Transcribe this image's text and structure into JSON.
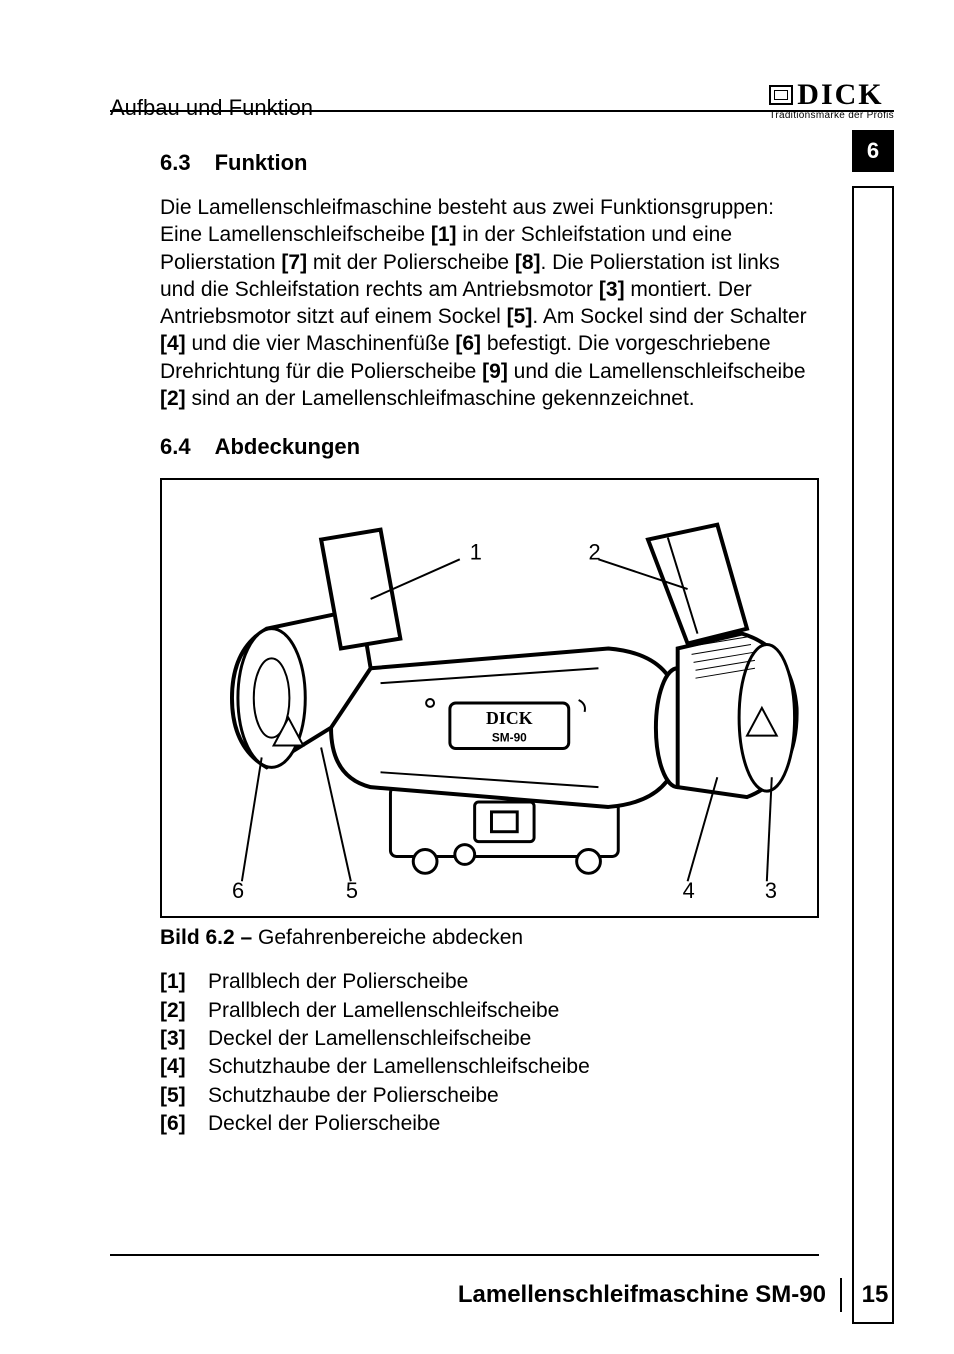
{
  "header": {
    "section_title": "Aufbau und Funktion",
    "brand_name": "DICK",
    "brand_tagline": "Traditionsmarke der Profis",
    "section_number": "6"
  },
  "section_63": {
    "num": "6.3",
    "title": "Funktion",
    "paragraph_parts": [
      "Die Lamellenschleifmaschine besteht aus zwei Funktionsgruppen: Eine Lamellenschleifscheibe ",
      "[1]",
      " in der Schleifstation und eine Polierstation ",
      "[7]",
      " mit der Polierscheibe ",
      "[8]",
      ". Die Polierstation ist links und die Schleifstation rechts am Antriebsmotor ",
      "[3]",
      " montiert. Der Antriebsmotor sitzt auf einem Sockel ",
      "[5]",
      ". Am Sockel sind der Schalter ",
      "[4]",
      " und die vier Maschinenfüße ",
      "[6]",
      " befestigt. Die vorgeschriebene Drehrichtung für die Polierscheibe ",
      "[9]",
      " und die Lamellenschleifscheibe ",
      "[2]",
      " sind an der Lamellenschleifmaschine gekennzeichnet."
    ]
  },
  "section_64": {
    "num": "6.4",
    "title": "Abdeckungen"
  },
  "figure": {
    "caption_prefix": "Bild 6.2 – ",
    "caption_text": "Gefahrenbereiche abdecken",
    "callouts": [
      "1",
      "2",
      "6",
      "5",
      "4",
      "3"
    ],
    "machine_label_top": "DICK",
    "machine_label_bottom": "SM-90"
  },
  "legend": [
    {
      "num": "[1]",
      "text": "Prallblech der Polierscheibe"
    },
    {
      "num": "[2]",
      "text": "Prallblech der Lamellenschleifscheibe"
    },
    {
      "num": "[3]",
      "text": "Deckel der Lamellenschleifscheibe"
    },
    {
      "num": "[4]",
      "text": "Schutzhaube der Lamellenschleifscheibe"
    },
    {
      "num": "[5]",
      "text": "Schutzhaube der Polierscheibe"
    },
    {
      "num": "[6]",
      "text": "Deckel der Polierscheibe"
    }
  ],
  "footer": {
    "doc_title": "Lamellenschleifmaschine SM-90",
    "page": "15"
  },
  "colors": {
    "text": "#000000",
    "bg": "#ffffff"
  }
}
